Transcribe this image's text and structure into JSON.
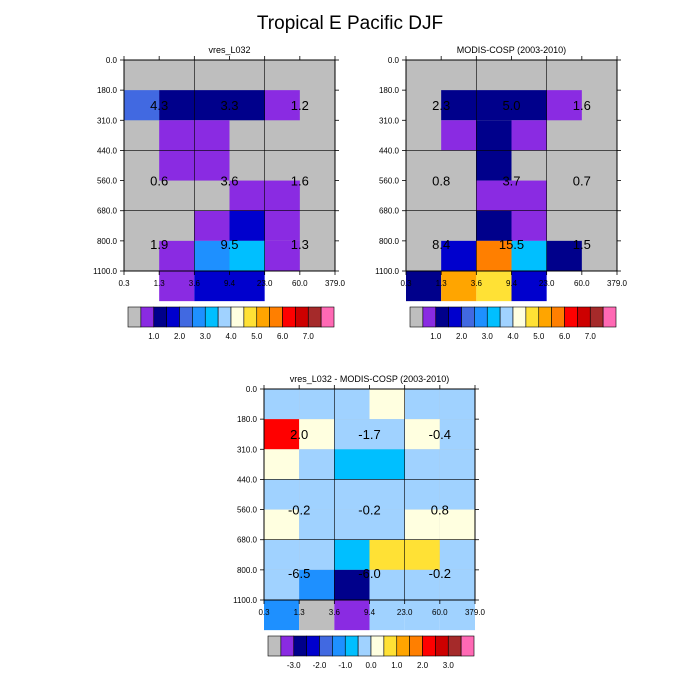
{
  "title": "Tropical E Pacific DJF",
  "colors": {
    "missing": "#bebebe",
    "frame": "#000000",
    "grid": "#000000"
  },
  "chart_data": [
    {
      "type": "heatmap",
      "title": "vres_L032",
      "x_tick_labels": [
        "0.3",
        "1.3",
        "3.6",
        "9.4",
        "23.0",
        "60.0",
        "379.0"
      ],
      "y_tick_labels": [
        "0.0",
        "180.0",
        "310.0",
        "440.0",
        "560.0",
        "680.0",
        "800.0",
        "1100.0"
      ],
      "xlabel": "",
      "ylabel": "",
      "grid_columns": 6,
      "grid_rows": 7,
      "cells": [
        {
          "row": 1,
          "col": 0,
          "color": "#4169e1"
        },
        {
          "row": 1,
          "col": 1,
          "color": "#00008b"
        },
        {
          "row": 1,
          "col": 2,
          "color": "#00008b"
        },
        {
          "row": 1,
          "col": 3,
          "color": "#00008b"
        },
        {
          "row": 1,
          "col": 4,
          "color": "#8a2be2"
        },
        {
          "row": 2,
          "col": 1,
          "color": "#8a2be2"
        },
        {
          "row": 2,
          "col": 2,
          "color": "#8a2be2"
        },
        {
          "row": 3,
          "col": 1,
          "color": "#8a2be2"
        },
        {
          "row": 3,
          "col": 2,
          "color": "#8a2be2"
        },
        {
          "row": 4,
          "col": 3,
          "color": "#8a2be2"
        },
        {
          "row": 4,
          "col": 4,
          "color": "#8a2be2"
        },
        {
          "row": 5,
          "col": 2,
          "color": "#8a2be2"
        },
        {
          "row": 5,
          "col": 3,
          "color": "#0000cd"
        },
        {
          "row": 5,
          "col": 4,
          "color": "#8a2be2"
        },
        {
          "row": 6,
          "col": 1,
          "color": "#8a2be2"
        },
        {
          "row": 6,
          "col": 2,
          "color": "#1e90ff"
        },
        {
          "row": 6,
          "col": 3,
          "color": "#00bfff"
        },
        {
          "row": 6,
          "col": 4,
          "color": "#8a2be2"
        },
        {
          "row": 7,
          "col": 1,
          "color": "#8a2be2"
        },
        {
          "row": 7,
          "col": 2,
          "color": "#0000cd"
        },
        {
          "row": 7,
          "col": 3,
          "color": "#0000cd"
        }
      ],
      "labels": [
        {
          "text": "4.3",
          "row": 1,
          "col": 1
        },
        {
          "text": "3.3",
          "row": 1,
          "col": 3
        },
        {
          "text": "1.2",
          "row": 1,
          "col": 5
        },
        {
          "text": "0.6",
          "row": 4,
          "col": 1
        },
        {
          "text": "3.6",
          "row": 4,
          "col": 3
        },
        {
          "text": "1.6",
          "row": 4,
          "col": 5
        },
        {
          "text": "1.9",
          "row": 7,
          "col": 1
        },
        {
          "text": "9.5",
          "row": 7,
          "col": 3
        },
        {
          "text": "1.3",
          "row": 7,
          "col": 5
        }
      ],
      "colorbar": {
        "colors": [
          "#bebebe",
          "#8a2be2",
          "#00008b",
          "#0000cd",
          "#4169e1",
          "#1e90ff",
          "#00bfff",
          "#a0d2ff",
          "#ffffe0",
          "#ffe135",
          "#ffa500",
          "#ff7f00",
          "#ff0000",
          "#cd0000",
          "#a52a2a",
          "#ff69b4"
        ],
        "labels": [
          "1.0",
          "2.0",
          "3.0",
          "4.0",
          "5.0",
          "6.0",
          "7.0"
        ]
      }
    },
    {
      "type": "heatmap",
      "title": "MODIS-COSP (2003-2010)",
      "x_tick_labels": [
        "0.3",
        "1.3",
        "3.6",
        "9.4",
        "23.0",
        "60.0",
        "379.0"
      ],
      "y_tick_labels": [
        "0.0",
        "180.0",
        "310.0",
        "440.0",
        "560.0",
        "680.0",
        "800.0",
        "1100.0"
      ],
      "xlabel": "",
      "ylabel": "",
      "grid_columns": 6,
      "grid_rows": 7,
      "cells": [
        {
          "row": 1,
          "col": 1,
          "color": "#00008b"
        },
        {
          "row": 1,
          "col": 2,
          "color": "#00008b"
        },
        {
          "row": 1,
          "col": 3,
          "color": "#00008b"
        },
        {
          "row": 1,
          "col": 4,
          "color": "#8a2be2"
        },
        {
          "row": 2,
          "col": 1,
          "color": "#8a2be2"
        },
        {
          "row": 2,
          "col": 2,
          "color": "#00008b"
        },
        {
          "row": 2,
          "col": 3,
          "color": "#8a2be2"
        },
        {
          "row": 3,
          "col": 2,
          "color": "#00008b"
        },
        {
          "row": 4,
          "col": 2,
          "color": "#8a2be2"
        },
        {
          "row": 4,
          "col": 3,
          "color": "#8a2be2"
        },
        {
          "row": 5,
          "col": 2,
          "color": "#00008b"
        },
        {
          "row": 5,
          "col": 3,
          "color": "#8a2be2"
        },
        {
          "row": 6,
          "col": 1,
          "color": "#0000cd"
        },
        {
          "row": 6,
          "col": 2,
          "color": "#ff7f00"
        },
        {
          "row": 6,
          "col": 3,
          "color": "#00bfff"
        },
        {
          "row": 6,
          "col": 4,
          "color": "#00008b"
        },
        {
          "row": 7,
          "col": 0,
          "color": "#00008b"
        },
        {
          "row": 7,
          "col": 1,
          "color": "#ffa500"
        },
        {
          "row": 7,
          "col": 2,
          "color": "#ffe135"
        },
        {
          "row": 7,
          "col": 3,
          "color": "#0000cd"
        }
      ],
      "labels": [
        {
          "text": "2.3",
          "row": 1,
          "col": 1
        },
        {
          "text": "5.0",
          "row": 1,
          "col": 3
        },
        {
          "text": "1.6",
          "row": 1,
          "col": 5
        },
        {
          "text": "0.8",
          "row": 4,
          "col": 1
        },
        {
          "text": "3.7",
          "row": 4,
          "col": 3
        },
        {
          "text": "0.7",
          "row": 4,
          "col": 5
        },
        {
          "text": "8.4",
          "row": 7,
          "col": 1
        },
        {
          "text": "15.5",
          "row": 7,
          "col": 3
        },
        {
          "text": "1.5",
          "row": 7,
          "col": 5
        }
      ],
      "colorbar": {
        "colors": [
          "#bebebe",
          "#8a2be2",
          "#00008b",
          "#0000cd",
          "#4169e1",
          "#1e90ff",
          "#00bfff",
          "#a0d2ff",
          "#ffffe0",
          "#ffe135",
          "#ffa500",
          "#ff7f00",
          "#ff0000",
          "#cd0000",
          "#a52a2a",
          "#ff69b4"
        ],
        "labels": [
          "1.0",
          "2.0",
          "3.0",
          "4.0",
          "5.0",
          "6.0",
          "7.0"
        ]
      }
    },
    {
      "type": "heatmap",
      "title": "vres_L032 - MODIS-COSP (2003-2010)",
      "x_tick_labels": [
        "0.3",
        "1.3",
        "3.6",
        "9.4",
        "23.0",
        "60.0",
        "379.0"
      ],
      "y_tick_labels": [
        "0.0",
        "180.0",
        "310.0",
        "440.0",
        "560.0",
        "680.0",
        "800.0",
        "1100.0"
      ],
      "xlabel": "",
      "ylabel": "",
      "grid_columns": 6,
      "grid_rows": 7,
      "cells": [
        {
          "row": 0,
          "col": 0,
          "color": "#a0d2ff"
        },
        {
          "row": 0,
          "col": 1,
          "color": "#a0d2ff"
        },
        {
          "row": 0,
          "col": 2,
          "color": "#a0d2ff"
        },
        {
          "row": 0,
          "col": 3,
          "color": "#ffffe0"
        },
        {
          "row": 0,
          "col": 4,
          "color": "#a0d2ff"
        },
        {
          "row": 0,
          "col": 5,
          "color": "#a0d2ff"
        },
        {
          "row": 1,
          "col": 0,
          "color": "#ff0000"
        },
        {
          "row": 1,
          "col": 1,
          "color": "#ffffe0"
        },
        {
          "row": 1,
          "col": 2,
          "color": "#a0d2ff"
        },
        {
          "row": 1,
          "col": 3,
          "color": "#a0d2ff"
        },
        {
          "row": 1,
          "col": 4,
          "color": "#ffffe0"
        },
        {
          "row": 1,
          "col": 5,
          "color": "#a0d2ff"
        },
        {
          "row": 2,
          "col": 0,
          "color": "#ffffe0"
        },
        {
          "row": 2,
          "col": 1,
          "color": "#a0d2ff"
        },
        {
          "row": 2,
          "col": 2,
          "color": "#00bfff"
        },
        {
          "row": 2,
          "col": 3,
          "color": "#00bfff"
        },
        {
          "row": 2,
          "col": 4,
          "color": "#a0d2ff"
        },
        {
          "row": 2,
          "col": 5,
          "color": "#a0d2ff"
        },
        {
          "row": 3,
          "col": 0,
          "color": "#a0d2ff"
        },
        {
          "row": 3,
          "col": 1,
          "color": "#a0d2ff"
        },
        {
          "row": 3,
          "col": 2,
          "color": "#a0d2ff"
        },
        {
          "row": 3,
          "col": 3,
          "color": "#a0d2ff"
        },
        {
          "row": 3,
          "col": 4,
          "color": "#a0d2ff"
        },
        {
          "row": 3,
          "col": 5,
          "color": "#a0d2ff"
        },
        {
          "row": 4,
          "col": 0,
          "color": "#ffffe0"
        },
        {
          "row": 4,
          "col": 1,
          "color": "#a0d2ff"
        },
        {
          "row": 4,
          "col": 2,
          "color": "#a0d2ff"
        },
        {
          "row": 4,
          "col": 3,
          "color": "#a0d2ff"
        },
        {
          "row": 4,
          "col": 4,
          "color": "#ffffe0"
        },
        {
          "row": 4,
          "col": 5,
          "color": "#ffffe0"
        },
        {
          "row": 5,
          "col": 0,
          "color": "#a0d2ff"
        },
        {
          "row": 5,
          "col": 1,
          "color": "#a0d2ff"
        },
        {
          "row": 5,
          "col": 2,
          "color": "#00bfff"
        },
        {
          "row": 5,
          "col": 3,
          "color": "#ffe135"
        },
        {
          "row": 5,
          "col": 4,
          "color": "#ffe135"
        },
        {
          "row": 5,
          "col": 5,
          "color": "#a0d2ff"
        },
        {
          "row": 6,
          "col": 0,
          "color": "#a0d2ff"
        },
        {
          "row": 6,
          "col": 1,
          "color": "#1e90ff"
        },
        {
          "row": 6,
          "col": 2,
          "color": "#00008b"
        },
        {
          "row": 6,
          "col": 3,
          "color": "#a0d2ff"
        },
        {
          "row": 6,
          "col": 4,
          "color": "#a0d2ff"
        },
        {
          "row": 6,
          "col": 5,
          "color": "#a0d2ff"
        },
        {
          "row": 7,
          "col": 0,
          "color": "#1e90ff"
        },
        {
          "row": 7,
          "col": 1,
          "color": "#bebebe"
        },
        {
          "row": 7,
          "col": 2,
          "color": "#8a2be2"
        },
        {
          "row": 7,
          "col": 3,
          "color": "#a0d2ff"
        },
        {
          "row": 7,
          "col": 4,
          "color": "#a0d2ff"
        },
        {
          "row": 7,
          "col": 5,
          "color": "#a0d2ff"
        }
      ],
      "labels": [
        {
          "text": "2.0",
          "row": 1,
          "col": 1
        },
        {
          "text": "-1.7",
          "row": 1,
          "col": 3
        },
        {
          "text": "-0.4",
          "row": 1,
          "col": 5
        },
        {
          "text": "-0.2",
          "row": 4,
          "col": 1
        },
        {
          "text": "-0.2",
          "row": 4,
          "col": 3
        },
        {
          "text": "0.8",
          "row": 4,
          "col": 5
        },
        {
          "text": "-6.5",
          "row": 7,
          "col": 1
        },
        {
          "text": "-6.0",
          "row": 7,
          "col": 3
        },
        {
          "text": "-0.2",
          "row": 7,
          "col": 5
        }
      ],
      "colorbar": {
        "colors": [
          "#bebebe",
          "#8a2be2",
          "#00008b",
          "#0000cd",
          "#4169e1",
          "#1e90ff",
          "#00bfff",
          "#a0d2ff",
          "#ffffe0",
          "#ffe135",
          "#ffa500",
          "#ff7f00",
          "#ff0000",
          "#cd0000",
          "#a52a2a",
          "#ff69b4"
        ],
        "labels": [
          "-3.0",
          "-2.0",
          "-1.0",
          "0.0",
          "1.0",
          "2.0",
          "3.0"
        ]
      }
    }
  ]
}
